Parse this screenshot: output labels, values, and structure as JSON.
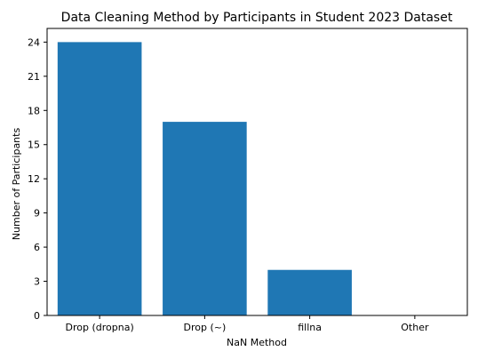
{
  "chart_data": {
    "type": "bar",
    "title": "Data Cleaning Method by Participants in Student 2023 Dataset",
    "xlabel": "NaN Method",
    "ylabel": "Number of Participants",
    "categories": [
      "Drop (dropna)",
      "Drop (~)",
      "fillna",
      "Other"
    ],
    "values": [
      24,
      17,
      4,
      0
    ],
    "ylim": [
      0,
      25.2
    ],
    "yticks": [
      0,
      3,
      6,
      9,
      12,
      15,
      18,
      21,
      24
    ],
    "bar_color": "#1f77b4",
    "grid": false,
    "legend": "none"
  }
}
